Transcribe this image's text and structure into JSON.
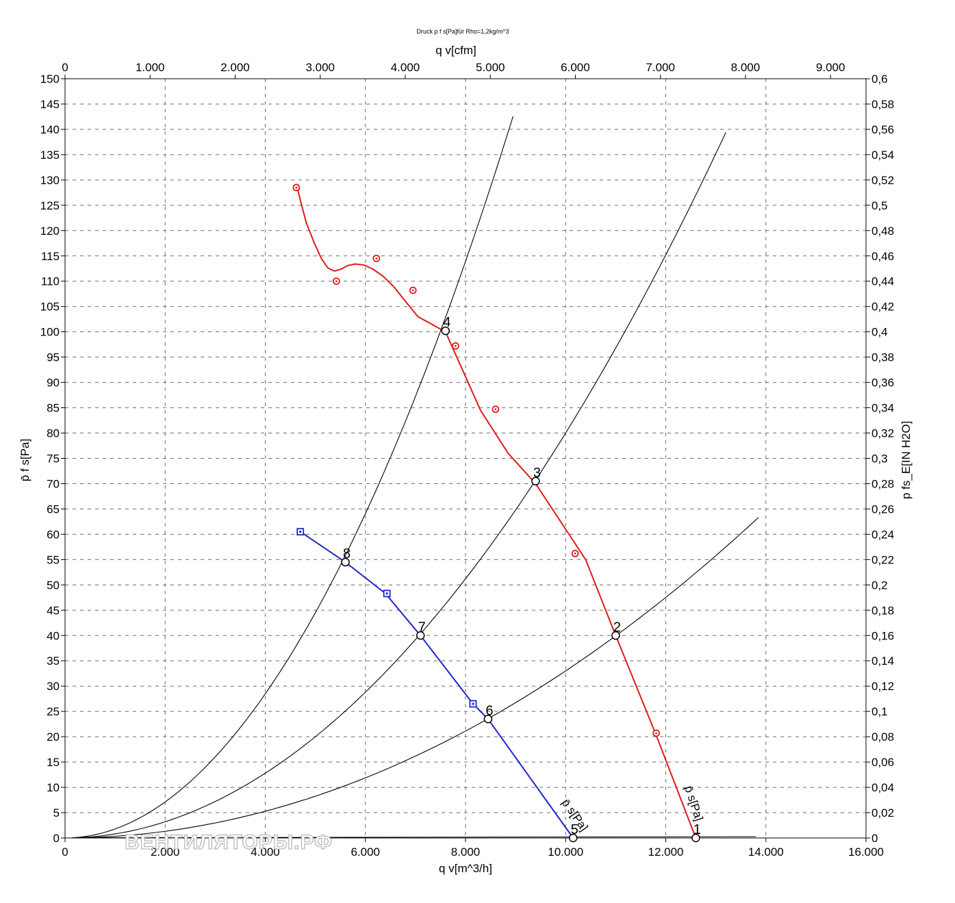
{
  "chart_data": {
    "type": "line",
    "title": "Druck p f s[Pa]für Rho=1,2kg/m^3",
    "xlabel": "q v[m^3/h]",
    "x2label": "q v[cfm]",
    "ylabel": "p̄ f s[Pa]",
    "y2label": "p fs_E[IN H2O]",
    "xlim": [
      0,
      16000
    ],
    "x2lim": [
      0,
      9417
    ],
    "ylim": [
      0,
      150
    ],
    "y2lim": [
      0,
      0.6
    ],
    "grid": true,
    "x_ticks": [
      "0",
      "2.000",
      "4.000",
      "6.000",
      "8.000",
      "10.000",
      "12.000",
      "14.000",
      "16.000"
    ],
    "x2_ticks": [
      {
        "v": 0,
        "label": "0"
      },
      {
        "v": 1000,
        "label": "1.000"
      },
      {
        "v": 2000,
        "label": "2.000"
      },
      {
        "v": 3000,
        "label": "3.000"
      },
      {
        "v": 4000,
        "label": "4.000"
      },
      {
        "v": 5000,
        "label": "5.000"
      },
      {
        "v": 6000,
        "label": "6.000"
      },
      {
        "v": 7000,
        "label": "7.000"
      },
      {
        "v": 8000,
        "label": "8.000"
      },
      {
        "v": 9000,
        "label": "9.000"
      }
    ],
    "y_ticks": [
      "0",
      "5",
      "10",
      "15",
      "20",
      "25",
      "30",
      "35",
      "40",
      "45",
      "50",
      "55",
      "60",
      "65",
      "70",
      "75",
      "80",
      "85",
      "90",
      "95",
      "100",
      "105",
      "110",
      "115",
      "120",
      "125",
      "130",
      "135",
      "140",
      "145",
      "150"
    ],
    "y2_ticks": [
      "0",
      "0,02",
      "0,04",
      "0,06",
      "0,08",
      "0,1",
      "0,12",
      "0,14",
      "0,16",
      "0,18",
      "0,2",
      "0,22",
      "0,24",
      "0,26",
      "0,28",
      "0,3",
      "0,32",
      "0,34",
      "0,36",
      "0,38",
      "0,4",
      "0,42",
      "0,44",
      "0,46",
      "0,48",
      "0,5",
      "0,52",
      "0,54",
      "0,56",
      "0,58",
      "0,6"
    ],
    "series": [
      {
        "name": "p̄ s[Pa]",
        "color": "#e0191b",
        "marker": "circle",
        "label": "p̄ s[Pa]",
        "line": [
          [
            4640,
            128.5
          ],
          [
            4700,
            126
          ],
          [
            4820,
            121.5
          ],
          [
            4980,
            117.5
          ],
          [
            5120,
            114.5
          ],
          [
            5250,
            112.6
          ],
          [
            5380,
            112
          ],
          [
            5520,
            112.4
          ],
          [
            5650,
            113.1
          ],
          [
            5800,
            113.4
          ],
          [
            5970,
            113.2
          ],
          [
            6150,
            112.4
          ],
          [
            6350,
            111
          ],
          [
            6560,
            109
          ],
          [
            6800,
            106
          ],
          [
            7050,
            103
          ],
          [
            7600,
            100
          ],
          [
            8300,
            84.5
          ],
          [
            8850,
            76
          ],
          [
            9400,
            70
          ],
          [
            10000,
            61
          ],
          [
            10400,
            55
          ],
          [
            11000,
            40
          ],
          [
            11800,
            20.5
          ],
          [
            12600,
            0
          ]
        ],
        "markers": [
          [
            4620,
            128.5
          ],
          [
            5420,
            110
          ],
          [
            6220,
            114.5
          ],
          [
            6950,
            108.2
          ],
          [
            7800,
            97.2
          ],
          [
            8600,
            84.7
          ],
          [
            10190,
            56.2
          ],
          [
            11810,
            20.7
          ]
        ]
      },
      {
        "name": "p̄ s[Pa]",
        "color": "#1a24c8",
        "marker": "square",
        "label": "p̄ s[Pa]",
        "line": [
          [
            4700,
            60.5
          ],
          [
            5600,
            54.5
          ],
          [
            6400,
            48.3
          ],
          [
            7100,
            40
          ],
          [
            8150,
            26.5
          ],
          [
            8450,
            23.5
          ],
          [
            10150,
            0
          ]
        ],
        "markers": [
          [
            4700,
            60.5
          ],
          [
            6430,
            48.3
          ],
          [
            8150,
            26.5
          ]
        ]
      }
    ],
    "system_curves": [
      {
        "k": 1.78e-06,
        "x_end": 8950
      },
      {
        "k": 8e-07,
        "x_end": 13200
      },
      {
        "k": 3.3e-07,
        "x_end": 13850
      }
    ],
    "operating_points": [
      {
        "id": "1",
        "x": 12600,
        "y": 0
      },
      {
        "id": "2",
        "x": 11000,
        "y": 40
      },
      {
        "id": "3",
        "x": 9400,
        "y": 70.5
      },
      {
        "id": "4",
        "x": 7600,
        "y": 100.2
      },
      {
        "id": "5",
        "x": 10150,
        "y": 0
      },
      {
        "id": "6",
        "x": 8450,
        "y": 23.5
      },
      {
        "id": "7",
        "x": 7100,
        "y": 40
      },
      {
        "id": "8",
        "x": 5600,
        "y": 54.5
      }
    ]
  },
  "watermark": "ВЕНТИЛЯТОРЫ.РФ"
}
